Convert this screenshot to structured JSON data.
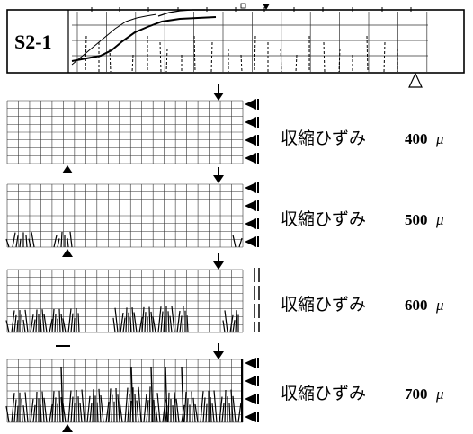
{
  "specimen": {
    "id": "S2-1"
  },
  "stages": [
    {
      "label": "収縮ひずみ",
      "value": "400",
      "unit": "μ"
    },
    {
      "label": "収縮ひずみ",
      "value": "500",
      "unit": "μ"
    },
    {
      "label": "収縮ひずみ",
      "value": "600",
      "unit": "μ"
    },
    {
      "label": "収縮ひずみ",
      "value": "700",
      "unit": "μ"
    }
  ],
  "colors": {
    "ink": "#000000",
    "grid": "#333333",
    "background": "#ffffff"
  },
  "icons": {
    "arrow": "down-arrow-icon",
    "triangle": "filled-triangle-icon",
    "support": "hollow-triangle-support-icon",
    "side_marker": "left-pointing-triangle-icon"
  }
}
